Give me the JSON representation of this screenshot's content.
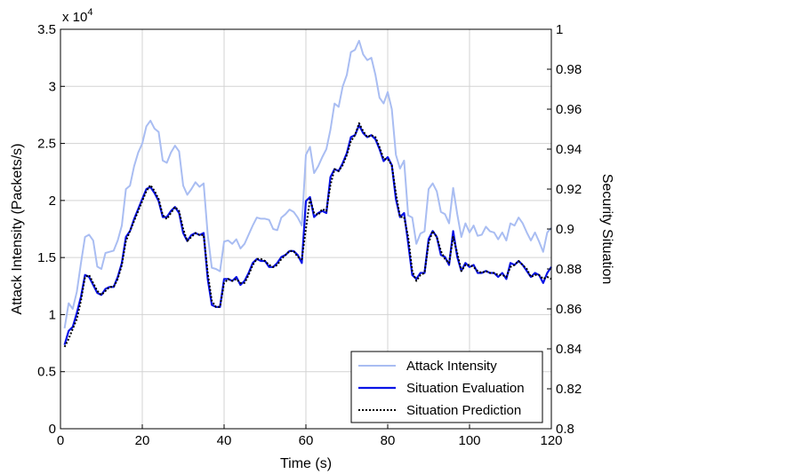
{
  "chart_data": {
    "type": "line",
    "title": "",
    "xlabel": "Time (s)",
    "ylabel_left": "Attack Intensity (Packets/s)",
    "ylabel_right": "Security Situation",
    "multiplier_label": "x 10",
    "multiplier_exponent": "4",
    "xlim": [
      0,
      120
    ],
    "ylim_left": [
      0,
      3.5
    ],
    "ylim_right": [
      0.8,
      1.0
    ],
    "x_ticks": [
      "0",
      "20",
      "40",
      "60",
      "80",
      "100",
      "120"
    ],
    "y_ticks_left": [
      "0",
      "0.5",
      "1",
      "1.5",
      "2",
      "2.5",
      "3",
      "3.5"
    ],
    "y_ticks_right": [
      "0.8",
      "0.82",
      "0.84",
      "0.86",
      "0.88",
      "0.9",
      "0.92",
      "0.94",
      "0.96",
      "0.98",
      "1"
    ],
    "grid": true,
    "legend_position": "bottom-right",
    "series": [
      {
        "name": "Attack Intensity",
        "axis": "left",
        "color": "#a9bdf2",
        "style": "solid",
        "x": [
          1,
          2,
          3,
          4,
          5,
          6,
          7,
          8,
          9,
          10,
          11,
          12,
          13,
          14,
          15,
          16,
          17,
          18,
          19,
          20,
          21,
          22,
          23,
          24,
          25,
          26,
          27,
          28,
          29,
          30,
          31,
          32,
          33,
          34,
          35,
          36,
          37,
          38,
          39,
          40,
          41,
          42,
          43,
          44,
          45,
          46,
          47,
          48,
          49,
          50,
          51,
          52,
          53,
          54,
          55,
          56,
          57,
          58,
          59,
          60,
          61,
          62,
          63,
          64,
          65,
          66,
          67,
          68,
          69,
          70,
          71,
          72,
          73,
          74,
          75,
          76,
          77,
          78,
          79,
          80,
          81,
          82,
          83,
          84,
          85,
          86,
          87,
          88,
          89,
          90,
          91,
          92,
          93,
          94,
          95,
          96,
          97,
          98,
          99,
          100,
          101,
          102,
          103,
          104,
          105,
          106,
          107,
          108,
          109,
          110,
          111,
          112,
          113,
          114,
          115,
          116,
          117,
          118,
          119,
          120
        ],
        "y": [
          0.88,
          1.1,
          1.05,
          1.2,
          1.45,
          1.68,
          1.7,
          1.65,
          1.42,
          1.4,
          1.54,
          1.55,
          1.56,
          1.65,
          1.78,
          2.1,
          2.13,
          2.3,
          2.42,
          2.5,
          2.65,
          2.7,
          2.63,
          2.6,
          2.35,
          2.33,
          2.42,
          2.48,
          2.43,
          2.13,
          2.05,
          2.1,
          2.16,
          2.12,
          2.15,
          1.7,
          1.41,
          1.4,
          1.38,
          1.64,
          1.65,
          1.62,
          1.66,
          1.58,
          1.62,
          1.7,
          1.78,
          1.85,
          1.84,
          1.84,
          1.83,
          1.75,
          1.74,
          1.85,
          1.88,
          1.92,
          1.9,
          1.85,
          1.78,
          2.4,
          2.47,
          2.24,
          2.3,
          2.38,
          2.45,
          2.62,
          2.85,
          2.82,
          3.0,
          3.1,
          3.3,
          3.32,
          3.4,
          3.28,
          3.23,
          3.25,
          3.1,
          2.9,
          2.85,
          2.95,
          2.8,
          2.4,
          2.28,
          2.35,
          1.87,
          1.85,
          1.62,
          1.71,
          1.73,
          2.1,
          2.15,
          2.08,
          1.9,
          1.88,
          1.8,
          2.11,
          1.88,
          1.68,
          1.8,
          1.72,
          1.78,
          1.69,
          1.7,
          1.77,
          1.73,
          1.72,
          1.66,
          1.72,
          1.65,
          1.8,
          1.78,
          1.85,
          1.8,
          1.72,
          1.65,
          1.72,
          1.64,
          1.55,
          1.72,
          1.76
        ]
      },
      {
        "name": "Situation Evaluation",
        "axis": "right",
        "color": "#0a14e6",
        "style": "solid",
        "x": [
          1,
          2,
          3,
          4,
          5,
          6,
          7,
          8,
          9,
          10,
          11,
          12,
          13,
          14,
          15,
          16,
          17,
          18,
          19,
          20,
          21,
          22,
          23,
          24,
          25,
          26,
          27,
          28,
          29,
          30,
          31,
          32,
          33,
          34,
          35,
          36,
          37,
          38,
          39,
          40,
          41,
          42,
          43,
          44,
          45,
          46,
          47,
          48,
          49,
          50,
          51,
          52,
          53,
          54,
          55,
          56,
          57,
          58,
          59,
          60,
          61,
          62,
          63,
          64,
          65,
          66,
          67,
          68,
          69,
          70,
          71,
          72,
          73,
          74,
          75,
          76,
          77,
          78,
          79,
          80,
          81,
          82,
          83,
          84,
          85,
          86,
          87,
          88,
          89,
          90,
          91,
          92,
          93,
          94,
          95,
          96,
          97,
          98,
          99,
          100,
          101,
          102,
          103,
          104,
          105,
          106,
          107,
          108,
          109,
          110,
          111,
          112,
          113,
          114,
          115,
          116,
          117,
          118,
          119,
          120
        ],
        "y": [
          0.842,
          0.849,
          0.851,
          0.858,
          0.866,
          0.877,
          0.876,
          0.872,
          0.868,
          0.867,
          0.87,
          0.871,
          0.871,
          0.876,
          0.883,
          0.896,
          0.899,
          0.905,
          0.91,
          0.915,
          0.92,
          0.921,
          0.918,
          0.914,
          0.906,
          0.906,
          0.909,
          0.911,
          0.908,
          0.898,
          0.894,
          0.897,
          0.898,
          0.897,
          0.898,
          0.875,
          0.862,
          0.861,
          0.861,
          0.875,
          0.875,
          0.874,
          0.876,
          0.872,
          0.874,
          0.878,
          0.883,
          0.885,
          0.884,
          0.884,
          0.881,
          0.881,
          0.883,
          0.886,
          0.887,
          0.889,
          0.889,
          0.887,
          0.883,
          0.914,
          0.916,
          0.906,
          0.908,
          0.909,
          0.908,
          0.926,
          0.93,
          0.929,
          0.933,
          0.938,
          0.946,
          0.947,
          0.952,
          0.948,
          0.946,
          0.947,
          0.945,
          0.94,
          0.934,
          0.936,
          0.932,
          0.915,
          0.906,
          0.908,
          0.893,
          0.877,
          0.875,
          0.878,
          0.878,
          0.895,
          0.899,
          0.896,
          0.887,
          0.886,
          0.882,
          0.899,
          0.886,
          0.879,
          0.883,
          0.881,
          0.882,
          0.878,
          0.878,
          0.879,
          0.878,
          0.878,
          0.876,
          0.878,
          0.875,
          0.883,
          0.882,
          0.884,
          0.882,
          0.879,
          0.876,
          0.878,
          0.877,
          0.873,
          0.878,
          0.881
        ]
      },
      {
        "name": "Situation Prediction",
        "axis": "right",
        "color": "#000000",
        "style": "dotted",
        "x": [
          1,
          2,
          3,
          4,
          5,
          6,
          7,
          8,
          9,
          10,
          11,
          12,
          13,
          14,
          15,
          16,
          17,
          18,
          19,
          20,
          21,
          22,
          23,
          24,
          25,
          26,
          27,
          28,
          29,
          30,
          31,
          32,
          33,
          34,
          35,
          36,
          37,
          38,
          39,
          40,
          41,
          42,
          43,
          44,
          45,
          46,
          47,
          48,
          49,
          50,
          51,
          52,
          53,
          54,
          55,
          56,
          57,
          58,
          59,
          60,
          61,
          62,
          63,
          64,
          65,
          66,
          67,
          68,
          69,
          70,
          71,
          72,
          73,
          74,
          75,
          76,
          77,
          78,
          79,
          80,
          81,
          82,
          83,
          84,
          85,
          86,
          87,
          88,
          89,
          90,
          91,
          92,
          93,
          94,
          95,
          96,
          97,
          98,
          99,
          100,
          101,
          102,
          103,
          104,
          105,
          106,
          107,
          108,
          109,
          110,
          111,
          112,
          113,
          114,
          115,
          116,
          117,
          118,
          119,
          120
        ],
        "y": [
          0.841,
          0.845,
          0.85,
          0.855,
          0.864,
          0.876,
          0.877,
          0.873,
          0.869,
          0.867,
          0.869,
          0.871,
          0.871,
          0.875,
          0.882,
          0.894,
          0.899,
          0.904,
          0.909,
          0.914,
          0.919,
          0.922,
          0.919,
          0.915,
          0.907,
          0.905,
          0.908,
          0.911,
          0.909,
          0.9,
          0.894,
          0.896,
          0.898,
          0.897,
          0.897,
          0.878,
          0.864,
          0.861,
          0.861,
          0.873,
          0.875,
          0.874,
          0.875,
          0.873,
          0.873,
          0.877,
          0.882,
          0.885,
          0.885,
          0.884,
          0.882,
          0.881,
          0.882,
          0.885,
          0.887,
          0.889,
          0.889,
          0.886,
          0.885,
          0.9,
          0.915,
          0.908,
          0.907,
          0.91,
          0.909,
          0.922,
          0.93,
          0.929,
          0.932,
          0.937,
          0.944,
          0.947,
          0.953,
          0.949,
          0.946,
          0.947,
          0.946,
          0.941,
          0.935,
          0.935,
          0.932,
          0.918,
          0.906,
          0.906,
          0.896,
          0.879,
          0.874,
          0.877,
          0.878,
          0.893,
          0.899,
          0.896,
          0.889,
          0.885,
          0.883,
          0.896,
          0.888,
          0.879,
          0.882,
          0.882,
          0.881,
          0.879,
          0.878,
          0.879,
          0.878,
          0.878,
          0.877,
          0.877,
          0.876,
          0.881,
          0.882,
          0.884,
          0.882,
          0.88,
          0.876,
          0.877,
          0.877,
          0.875,
          0.876,
          0.875
        ]
      }
    ]
  }
}
